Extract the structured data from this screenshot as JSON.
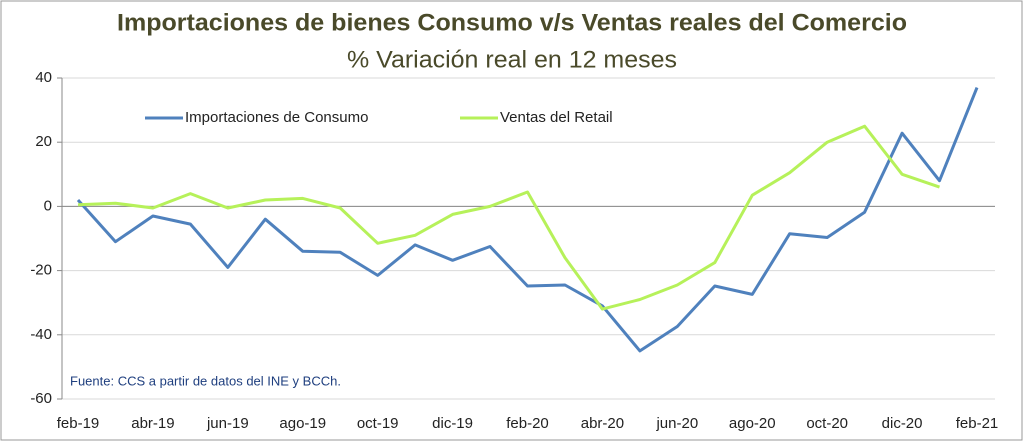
{
  "chart_data": {
    "type": "line",
    "title": "Importaciones de bienes Consumo v/s Ventas reales del Comercio",
    "subtitle": "% Variación real en 12 meses",
    "source": "Fuente: CCS a partir de datos del INE y BCCh.",
    "categories": [
      "feb-19",
      null,
      "abr-19",
      null,
      "jun-19",
      null,
      "ago-19",
      null,
      "oct-19",
      null,
      "dic-19",
      null,
      "feb-20",
      null,
      "abr-20",
      null,
      "jun-20",
      null,
      "ago-20",
      null,
      "oct-20",
      null,
      "dic-20",
      null,
      "feb-21"
    ],
    "series": [
      {
        "name": "Importaciones de Consumo",
        "color": "#4f81bd",
        "values": [
          2,
          -11,
          -3,
          -5.5,
          -19,
          -4,
          -14,
          -14.3,
          -21.5,
          -12,
          -16.8,
          -12.5,
          -24.8,
          -24.5,
          -31,
          -45,
          -37.4,
          -24.8,
          -27.4,
          -8.5,
          -9.7,
          -1.8,
          22.8,
          8,
          37
        ]
      },
      {
        "name": "Ventas del Retail",
        "color": "#b6f15a",
        "values": [
          0.5,
          1,
          -0.5,
          4,
          -0.5,
          2,
          2.5,
          -0.5,
          -11.5,
          -9,
          -2.5,
          0,
          4.5,
          -16,
          -32,
          -29,
          -24.5,
          -17.5,
          3.5,
          10.5,
          20,
          25,
          10,
          6,
          null
        ]
      }
    ],
    "ylim": [
      -60,
      40
    ],
    "yticks": [
      -60,
      -40,
      -20,
      0,
      20,
      40
    ],
    "grid": true
  }
}
